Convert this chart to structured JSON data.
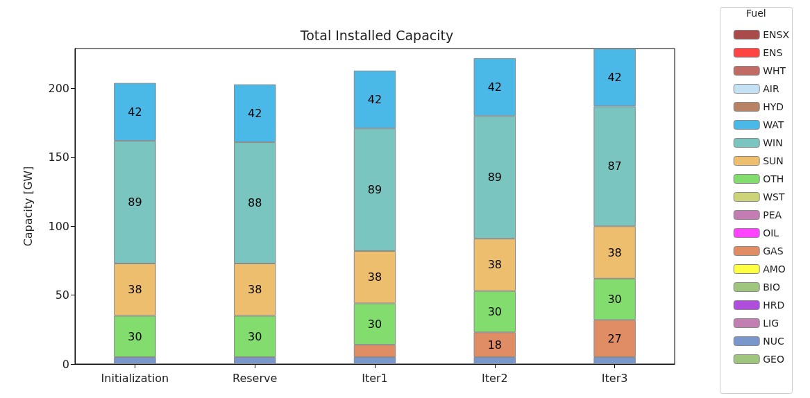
{
  "chart_data": {
    "type": "bar",
    "title": "Total Installed Capacity",
    "ylabel": "Capacity [GW]",
    "legend_title": "Fuel",
    "categories": [
      "Initialization",
      "Reserve",
      "Iter1",
      "Iter2",
      "Iter3"
    ],
    "stacked": true,
    "ylim": [
      0,
      229
    ],
    "yticks": [
      0,
      50,
      100,
      150,
      200
    ],
    "grid": false,
    "legend": "right",
    "series": [
      {
        "name": "GEO",
        "color": "#9fc57e",
        "values": [
          null,
          null,
          null,
          null,
          null
        ]
      },
      {
        "name": "NUC",
        "color": "#7a97cb",
        "values": [
          5,
          5,
          5,
          5,
          5
        ]
      },
      {
        "name": "LIG",
        "color": "#c27fb2",
        "values": [
          null,
          null,
          null,
          null,
          null
        ]
      },
      {
        "name": "HRD",
        "color": "#b04ddc",
        "values": [
          null,
          null,
          null,
          null,
          null
        ]
      },
      {
        "name": "BIO",
        "color": "#9fc57e",
        "values": [
          null,
          null,
          null,
          null,
          null
        ]
      },
      {
        "name": "AMO",
        "color": "#ffff44",
        "values": [
          null,
          null,
          null,
          null,
          null
        ]
      },
      {
        "name": "GAS",
        "color": "#e08d66",
        "values": [
          null,
          null,
          9,
          18,
          27
        ],
        "value_labels": [
          null,
          null,
          null,
          "18",
          "27"
        ]
      },
      {
        "name": "OIL",
        "color": "#ff44ff",
        "values": [
          null,
          null,
          null,
          null,
          null
        ]
      },
      {
        "name": "PEA",
        "color": "#c47db3",
        "values": [
          null,
          null,
          null,
          null,
          null
        ]
      },
      {
        "name": "WST",
        "color": "#cdd378",
        "values": [
          null,
          null,
          null,
          null,
          null
        ]
      },
      {
        "name": "OTH",
        "color": "#82dd6e",
        "values": [
          30,
          30,
          30,
          30,
          30
        ],
        "value_labels": [
          "30",
          "30",
          "30",
          "30",
          "30"
        ]
      },
      {
        "name": "SUN",
        "color": "#eebe6f",
        "values": [
          38,
          38,
          38,
          38,
          38
        ],
        "value_labels": [
          "38",
          "38",
          "38",
          "38",
          "38"
        ]
      },
      {
        "name": "WIN",
        "color": "#7ac5c0",
        "values": [
          89,
          88,
          89,
          89,
          87
        ],
        "value_labels": [
          "89",
          "88",
          "89",
          "89",
          "87"
        ]
      },
      {
        "name": "WAT",
        "color": "#4ab9e8",
        "values": [
          42,
          42,
          42,
          42,
          42
        ],
        "value_labels": [
          "42",
          "42",
          "42",
          "42",
          "42"
        ]
      },
      {
        "name": "HYD",
        "color": "#b88264",
        "values": [
          null,
          null,
          null,
          null,
          null
        ]
      },
      {
        "name": "AIR",
        "color": "#c4e2f4",
        "values": [
          null,
          null,
          null,
          null,
          null
        ]
      },
      {
        "name": "WHT",
        "color": "#c06b63",
        "values": [
          null,
          null,
          null,
          null,
          null
        ]
      },
      {
        "name": "ENS",
        "color": "#ff4444",
        "values": [
          null,
          null,
          null,
          null,
          null
        ]
      },
      {
        "name": "ENSX",
        "color": "#a94b4b",
        "values": [
          null,
          null,
          null,
          null,
          null
        ]
      }
    ]
  }
}
